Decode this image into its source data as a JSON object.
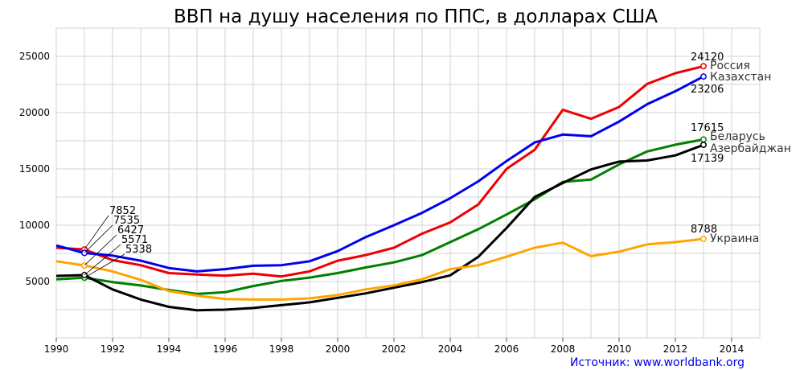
{
  "chart_data": {
    "type": "line",
    "title": "ВВП на душу населения по ППС, в долларах США",
    "source": "Источник: www.worldbank.org",
    "xlim": [
      1990,
      2015
    ],
    "ylim": [
      0,
      27500
    ],
    "x_ticks": [
      "1990",
      "1992",
      "1994",
      "1996",
      "1998",
      "2000",
      "2002",
      "2004",
      "2006",
      "2008",
      "2010",
      "2012",
      "2014"
    ],
    "y_ticks": [
      "5000",
      "10000",
      "15000",
      "20000",
      "25000"
    ],
    "grid": true,
    "x": [
      1990,
      1991,
      1992,
      1993,
      1994,
      1995,
      1996,
      1997,
      1998,
      1999,
      2000,
      2001,
      2002,
      2003,
      2004,
      2005,
      2006,
      2007,
      2008,
      2009,
      2010,
      2011,
      2012,
      2013
    ],
    "series": [
      {
        "name": "Россия",
        "color": "#ee0000",
        "end_label": "24120",
        "start_label": "7852",
        "values": [
          8000,
          7852,
          6900,
          6450,
          5750,
          5620,
          5520,
          5700,
          5450,
          5900,
          6850,
          7350,
          8000,
          9250,
          10250,
          11850,
          15000,
          16700,
          20250,
          19450,
          20500,
          22550,
          23500,
          24120
        ]
      },
      {
        "name": "Казахстан",
        "color": "#0000ee",
        "end_label": "23206",
        "start_label": "7535",
        "values": [
          8200,
          7535,
          7300,
          6850,
          6200,
          5900,
          6100,
          6400,
          6450,
          6800,
          7700,
          8950,
          10000,
          11100,
          12400,
          13900,
          15700,
          17350,
          18050,
          17900,
          19200,
          20750,
          21900,
          23206
        ]
      },
      {
        "name": "Беларусь",
        "color": "#008000",
        "end_label": "17615",
        "start_label": "5338",
        "values": [
          5200,
          5338,
          4950,
          4650,
          4250,
          3900,
          4050,
          4600,
          5050,
          5350,
          5750,
          6250,
          6700,
          7350,
          8500,
          9650,
          10950,
          12300,
          13850,
          14050,
          15400,
          16550,
          17150,
          17615
        ]
      },
      {
        "name": "Азербайджан",
        "color": "#000000",
        "end_label": "17139",
        "start_label": "5571",
        "values": [
          5500,
          5571,
          4300,
          3400,
          2750,
          2450,
          2500,
          2650,
          2900,
          3150,
          3550,
          3950,
          4450,
          4950,
          5550,
          7200,
          9750,
          12500,
          13750,
          14950,
          15650,
          15750,
          16200,
          17139
        ]
      },
      {
        "name": "Украина",
        "color": "#ffa500",
        "end_label": "8788",
        "start_label": "6427",
        "values": [
          6800,
          6427,
          5900,
          5150,
          4150,
          3750,
          3450,
          3400,
          3400,
          3500,
          3800,
          4300,
          4650,
          5200,
          6100,
          6450,
          7200,
          8000,
          8450,
          7250,
          7650,
          8300,
          8500,
          8788
        ]
      }
    ]
  }
}
